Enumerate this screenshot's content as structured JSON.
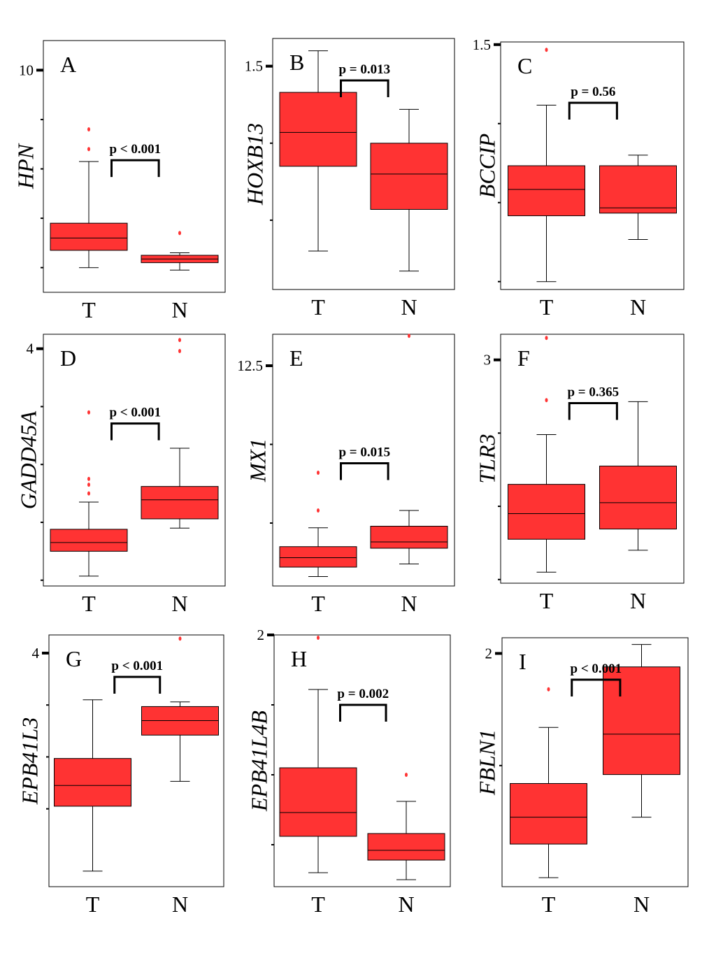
{
  "colors": {
    "box_fill": "#ff3333",
    "outlier": "#ff3333",
    "frame": "#000000"
  },
  "chart_data": [
    {
      "type": "box",
      "panel": "A",
      "ylabel": "HPN",
      "categories": [
        "T",
        "N"
      ],
      "pvalue": "p < 0.001",
      "yticks": [
        {
          "value": 10,
          "label": "10"
        }
      ],
      "minor_ticks": [
        8,
        6,
        4,
        2
      ],
      "ylim": [
        1.0,
        11.2
      ],
      "boxes": [
        {
          "name": "T",
          "whisker_low": 2.0,
          "q1": 2.7,
          "median": 3.2,
          "q3": 3.8,
          "whisker_high": 6.3,
          "outliers": [
            7.6,
            6.8
          ]
        },
        {
          "name": "N",
          "whisker_low": 1.9,
          "q1": 2.2,
          "median": 2.35,
          "q3": 2.5,
          "whisker_high": 2.6,
          "outliers": [
            3.4
          ]
        }
      ]
    },
    {
      "type": "box",
      "panel": "B",
      "ylabel": "HOXB13",
      "categories": [
        "T",
        "N"
      ],
      "pvalue": "p = 0.013",
      "yticks": [
        {
          "value": 1.5,
          "label": "1.5"
        }
      ],
      "minor_ticks": [
        1.0,
        0.5
      ],
      "ylim": [
        0.05,
        1.68
      ],
      "boxes": [
        {
          "name": "T",
          "whisker_low": 0.3,
          "q1": 0.85,
          "median": 1.07,
          "q3": 1.33,
          "whisker_high": 1.6,
          "outliers": []
        },
        {
          "name": "N",
          "whisker_low": 0.17,
          "q1": 0.57,
          "median": 0.8,
          "q3": 1.0,
          "whisker_high": 1.22,
          "outliers": []
        }
      ]
    },
    {
      "type": "box",
      "panel": "C",
      "ylabel": "BCCIP",
      "categories": [
        "T",
        "N"
      ],
      "pvalue": "p = 0.56",
      "yticks": [
        {
          "value": 1.5,
          "label": "1.5"
        }
      ],
      "minor_ticks": [
        1.2,
        0.9,
        0.6
      ],
      "ylim": [
        0.57,
        1.51
      ],
      "boxes": [
        {
          "name": "T",
          "whisker_low": 0.6,
          "q1": 0.85,
          "median": 0.95,
          "q3": 1.04,
          "whisker_high": 1.27,
          "outliers": [
            1.48
          ]
        },
        {
          "name": "N",
          "whisker_low": 0.76,
          "q1": 0.86,
          "median": 0.88,
          "q3": 1.04,
          "whisker_high": 1.08,
          "outliers": []
        }
      ]
    },
    {
      "type": "box",
      "panel": "D",
      "ylabel": "GADD45A",
      "categories": [
        "T",
        "N"
      ],
      "pvalue": "p < 0.001",
      "yticks": [
        {
          "value": 4,
          "label": "4"
        }
      ],
      "minor_ticks": [
        3,
        2,
        1,
        0
      ],
      "ylim": [
        -0.1,
        4.25
      ],
      "boxes": [
        {
          "name": "T",
          "whisker_low": 0.07,
          "q1": 0.5,
          "median": 0.65,
          "q3": 0.88,
          "whisker_high": 1.35,
          "outliers": [
            2.9,
            1.75,
            1.65,
            1.5
          ]
        },
        {
          "name": "N",
          "whisker_low": 0.9,
          "q1": 1.06,
          "median": 1.39,
          "q3": 1.62,
          "whisker_high": 2.28,
          "outliers": [
            4.15,
            3.96
          ]
        }
      ]
    },
    {
      "type": "box",
      "panel": "E",
      "ylabel": "MX1",
      "categories": [
        "T",
        "N"
      ],
      "pvalue": "p = 0.015",
      "yticks": [
        {
          "value": 12.5,
          "label": "12.5"
        }
      ],
      "minor_ticks": [
        10,
        7.5
      ],
      "ylim": [
        5.5,
        13.5
      ],
      "boxes": [
        {
          "name": "T",
          "whisker_low": 5.8,
          "q1": 6.1,
          "median": 6.4,
          "q3": 6.75,
          "whisker_high": 7.35,
          "outliers": [
            9.1,
            7.9
          ]
        },
        {
          "name": "N",
          "whisker_low": 6.2,
          "q1": 6.7,
          "median": 6.9,
          "q3": 7.4,
          "whisker_high": 7.9,
          "outliers": [
            13.45
          ]
        }
      ]
    },
    {
      "type": "box",
      "panel": "F",
      "ylabel": "TLR3",
      "categories": [
        "T",
        "N"
      ],
      "pvalue": "p = 0.365",
      "yticks": [
        {
          "value": 3,
          "label": "3"
        }
      ],
      "minor_ticks": [
        2,
        1,
        0
      ],
      "ylim": [
        -0.05,
        3.35
      ],
      "boxes": [
        {
          "name": "T",
          "whisker_low": 0.1,
          "q1": 0.55,
          "median": 0.9,
          "q3": 1.3,
          "whisker_high": 1.98,
          "outliers": [
            3.3,
            2.45
          ]
        },
        {
          "name": "N",
          "whisker_low": 0.4,
          "q1": 0.69,
          "median": 1.05,
          "q3": 1.55,
          "whisker_high": 2.43,
          "outliers": []
        }
      ]
    },
    {
      "type": "box",
      "panel": "G",
      "ylabel": "EPB41L3",
      "categories": [
        "T",
        "N"
      ],
      "pvalue": "p < 0.001",
      "yticks": [
        {
          "value": 4,
          "label": "4"
        }
      ],
      "minor_ticks": [
        3,
        2,
        1
      ],
      "ylim": [
        -0.5,
        4.35
      ],
      "boxes": [
        {
          "name": "T",
          "whisker_low": -0.2,
          "q1": 1.05,
          "median": 1.45,
          "q3": 1.97,
          "whisker_high": 3.1,
          "outliers": []
        },
        {
          "name": "N",
          "whisker_low": 1.53,
          "q1": 2.42,
          "median": 2.7,
          "q3": 2.97,
          "whisker_high": 3.06,
          "outliers": [
            4.28
          ]
        }
      ]
    },
    {
      "type": "box",
      "panel": "H",
      "ylabel": "EPB41L4B",
      "categories": [
        "T",
        "N"
      ],
      "pvalue": "p = 0.002",
      "yticks": [
        {
          "value": 2,
          "label": "2"
        }
      ],
      "minor_ticks": [
        1.5,
        1.0,
        0.5
      ],
      "ylim": [
        0.2,
        2.0
      ],
      "boxes": [
        {
          "name": "T",
          "whisker_low": 0.3,
          "q1": 0.56,
          "median": 0.73,
          "q3": 1.05,
          "whisker_high": 1.61,
          "outliers": [
            1.98
          ]
        },
        {
          "name": "N",
          "whisker_low": 0.25,
          "q1": 0.39,
          "median": 0.46,
          "q3": 0.58,
          "whisker_high": 0.81,
          "outliers": [
            1.0
          ]
        }
      ]
    },
    {
      "type": "box",
      "panel": "I",
      "ylabel": "FBLN1",
      "categories": [
        "T",
        "N"
      ],
      "pvalue": "p < 0.001",
      "yticks": [
        {
          "value": 2,
          "label": "2"
        }
      ],
      "minor_ticks": [
        1.5
      ],
      "ylim": [
        0.96,
        2.07
      ],
      "boxes": [
        {
          "name": "T",
          "whisker_low": 1.0,
          "q1": 1.15,
          "median": 1.27,
          "q3": 1.42,
          "whisker_high": 1.67,
          "outliers": [
            1.84
          ]
        },
        {
          "name": "N",
          "whisker_low": 1.27,
          "q1": 1.46,
          "median": 1.64,
          "q3": 1.94,
          "whisker_high": 2.04,
          "outliers": []
        }
      ]
    }
  ]
}
